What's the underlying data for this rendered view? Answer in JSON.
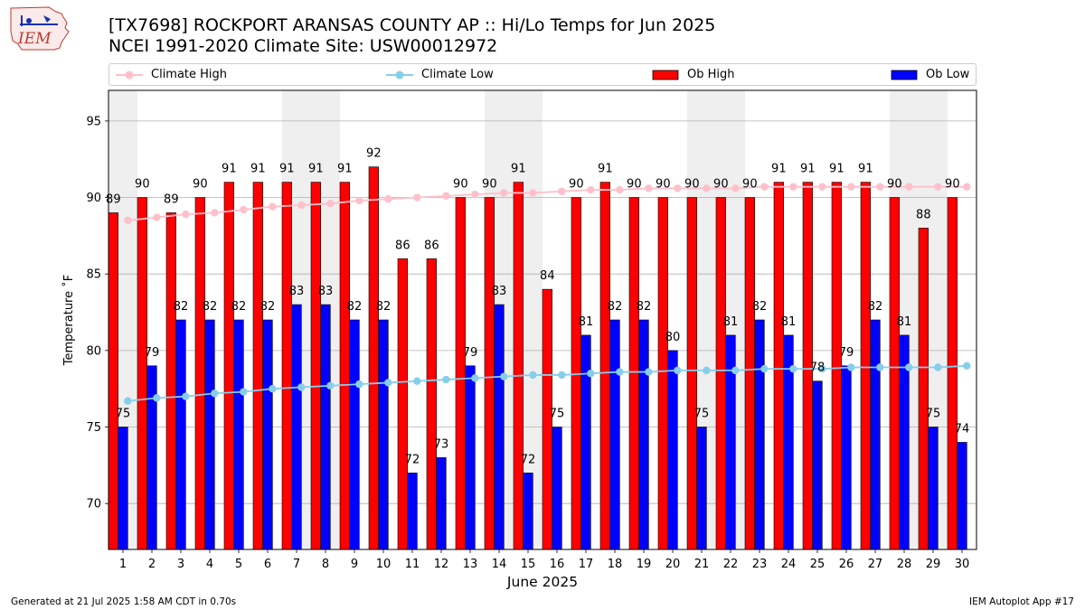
{
  "header": {
    "logo_text": "IEM",
    "title_line1": "[TX7698] ROCKPORT ARANSAS COUNTY AP :: Hi/Lo Temps for Jun 2025",
    "title_line2": "NCEI 1991-2020 Climate Site: USW00012972"
  },
  "legend": {
    "climate_high": "Climate High",
    "climate_low": "Climate Low",
    "ob_high": "Ob High",
    "ob_low": "Ob Low"
  },
  "footer": {
    "left": "Generated at 21 Jul 2025 1:58 AM CDT in 0.70s",
    "right": "IEM Autoplot App #17"
  },
  "colors": {
    "ob_high": "#ff0000",
    "ob_low": "#0000ff",
    "climate_high": "#ffc0cb",
    "climate_low": "#87ceeb",
    "weekend_shade": "#efefef",
    "grid": "#b0b0b0"
  },
  "chart_data": {
    "type": "bar",
    "xlabel": "June 2025",
    "ylabel": "Temperature ˚F",
    "ylim": [
      67,
      97
    ],
    "yticks": [
      70,
      75,
      80,
      85,
      90,
      95
    ],
    "grid": "horizontal",
    "legend_position": "top",
    "categories": [
      "1",
      "2",
      "3",
      "4",
      "5",
      "6",
      "7",
      "8",
      "9",
      "10",
      "11",
      "12",
      "13",
      "14",
      "15",
      "16",
      "17",
      "18",
      "19",
      "20",
      "21",
      "22",
      "23",
      "24",
      "25",
      "26",
      "27",
      "28",
      "29",
      "30"
    ],
    "shaded_days": [
      1,
      7,
      8,
      14,
      15,
      21,
      22,
      28,
      29
    ],
    "series": [
      {
        "name": "Ob High",
        "kind": "bar",
        "values": [
          89,
          90,
          89,
          90,
          91,
          91,
          91,
          91,
          91,
          92,
          86,
          86,
          90,
          90,
          91,
          84,
          90,
          91,
          90,
          90,
          90,
          90,
          90,
          91,
          91,
          91,
          91,
          90,
          88,
          90
        ]
      },
      {
        "name": "Ob Low",
        "kind": "bar",
        "values": [
          75,
          79,
          82,
          82,
          82,
          82,
          83,
          83,
          82,
          82,
          72,
          73,
          79,
          83,
          72,
          75,
          81,
          82,
          82,
          80,
          75,
          81,
          82,
          81,
          78,
          79,
          82,
          81,
          75,
          74
        ]
      },
      {
        "name": "Climate High",
        "kind": "line",
        "values": [
          88.5,
          88.7,
          88.9,
          89.0,
          89.2,
          89.4,
          89.5,
          89.6,
          89.8,
          89.9,
          90.0,
          90.1,
          90.2,
          90.3,
          90.3,
          90.4,
          90.5,
          90.5,
          90.6,
          90.6,
          90.6,
          90.6,
          90.7,
          90.7,
          90.7,
          90.7,
          90.7,
          90.7,
          90.7,
          90.7
        ]
      },
      {
        "name": "Climate Low",
        "kind": "line",
        "values": [
          76.7,
          76.9,
          77.0,
          77.2,
          77.3,
          77.5,
          77.6,
          77.7,
          77.8,
          77.9,
          78.0,
          78.1,
          78.2,
          78.3,
          78.4,
          78.4,
          78.5,
          78.6,
          78.6,
          78.7,
          78.7,
          78.7,
          78.8,
          78.8,
          78.8,
          78.9,
          78.9,
          78.9,
          78.9,
          79.0
        ]
      }
    ]
  }
}
